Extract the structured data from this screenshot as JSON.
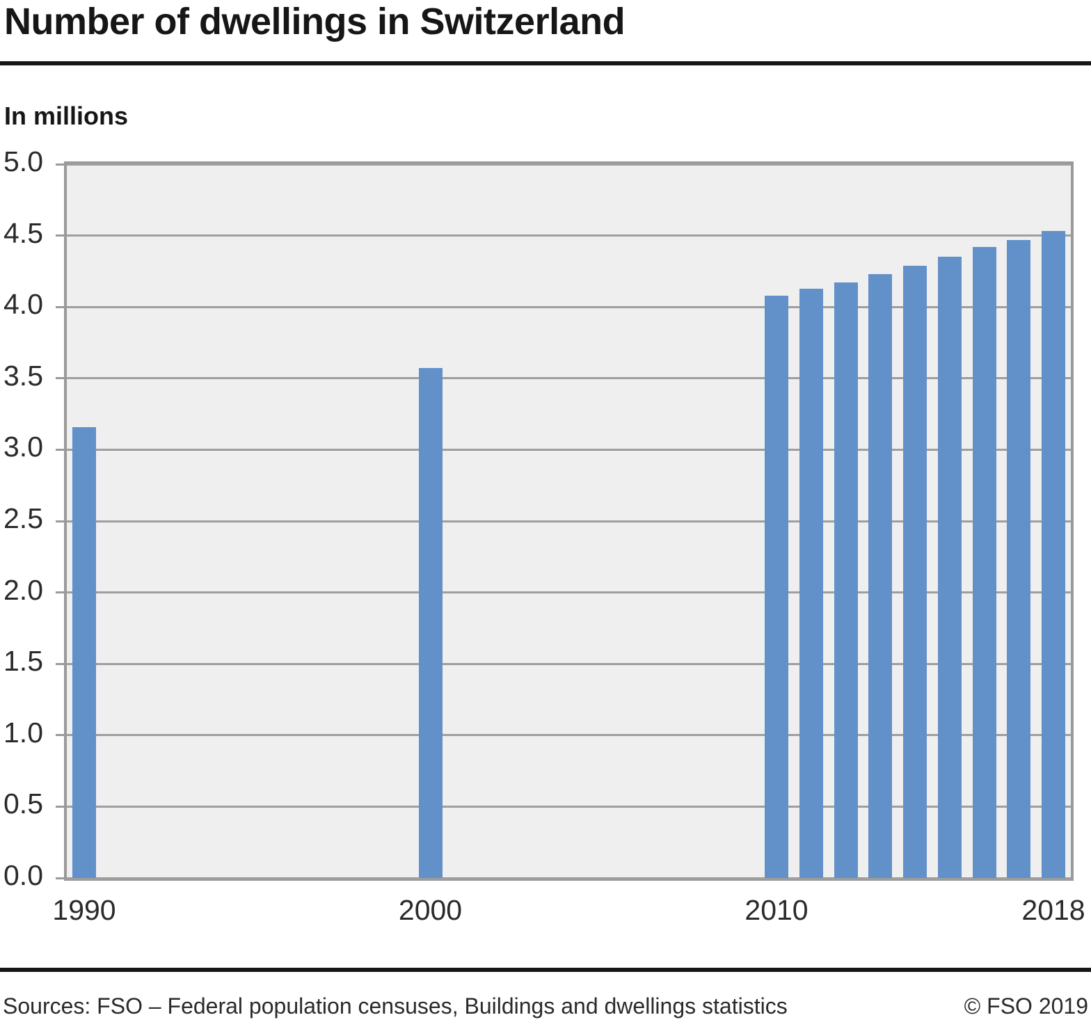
{
  "page": {
    "title": "Number of dwellings in Switzerland",
    "unit_label": "In millions",
    "footer": {
      "sources": "Sources: FSO – Federal population censuses, Buildings and dwellings statistics",
      "copyright": "© FSO 2019"
    }
  },
  "chart_data": {
    "type": "bar",
    "title": "Number of dwellings in Switzerland",
    "ylabel": "In millions",
    "x": [
      1990,
      2000,
      2010,
      2011,
      2012,
      2013,
      2014,
      2015,
      2016,
      2017,
      2018
    ],
    "values": [
      3.16,
      3.57,
      4.08,
      4.13,
      4.17,
      4.23,
      4.29,
      4.35,
      4.42,
      4.47,
      4.53
    ],
    "x_axis": {
      "min": 1990,
      "max": 2018,
      "tick_labels": [
        "1990",
        "2000",
        "2010",
        "2018"
      ],
      "tick_years": [
        1990,
        2000,
        2010,
        2018
      ]
    },
    "y_axis": {
      "min": 0.0,
      "max": 5.0,
      "step": 0.5,
      "decimals": 1
    },
    "grid": true,
    "legend": false,
    "colors": {
      "bar": "#6290c9",
      "plot_background": "#efefef",
      "gridline": "#9e9e9e",
      "axis": "#9a9a9a",
      "text": "#1a1a1a"
    }
  }
}
